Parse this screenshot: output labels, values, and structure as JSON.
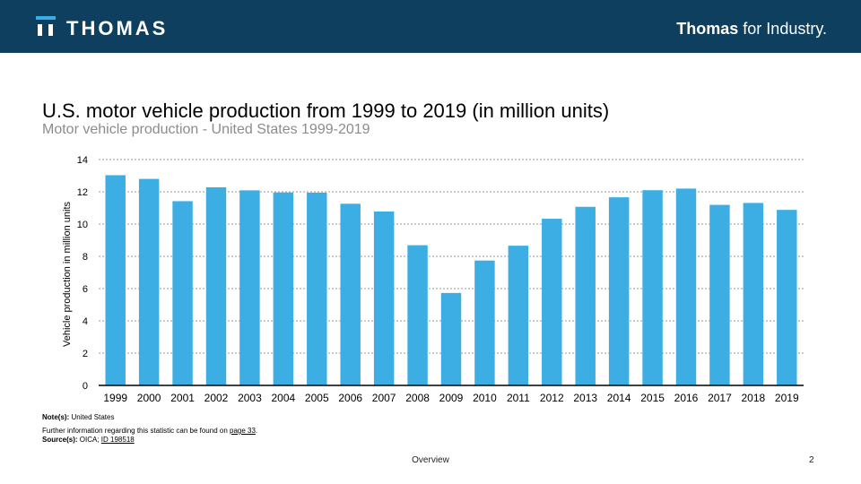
{
  "header": {
    "logo_text": "THOMAS",
    "tagline_bold": "Thomas",
    "tagline_rest": " for Industry."
  },
  "slide": {
    "title": "U.S. motor vehicle production from 1999 to 2019 (in million units)",
    "subtitle": "Motor vehicle production - United States 1999-2019"
  },
  "notes": {
    "note_label": "Note(s):",
    "note_text": " United States",
    "further_prefix": "Further information regarding  this statistic can be found on ",
    "further_link": "page  33",
    "further_suffix": ".",
    "source_label": "Source(s):",
    "source_text": " OICA; ",
    "source_link": "ID 198518"
  },
  "footer": {
    "section": "Overview",
    "page": "2"
  },
  "colors": {
    "bar": "#3daee3",
    "header": "#0e3f5e"
  },
  "chart_data": {
    "type": "bar",
    "title": "U.S. motor vehicle production from 1999 to 2019 (in million units)",
    "xlabel": "",
    "ylabel": "Vehicle production in million units",
    "ylim": [
      0,
      14
    ],
    "yticks": [
      0,
      2,
      4,
      6,
      8,
      10,
      12,
      14
    ],
    "grid": true,
    "categories": [
      "1999",
      "2000",
      "2001",
      "2002",
      "2003",
      "2004",
      "2005",
      "2006",
      "2007",
      "2008",
      "2009",
      "2010",
      "2011",
      "2012",
      "2013",
      "2014",
      "2015",
      "2016",
      "2017",
      "2018",
      "2019"
    ],
    "values": [
      13.03,
      12.8,
      11.42,
      12.28,
      12.09,
      11.96,
      11.95,
      11.26,
      10.78,
      8.69,
      5.73,
      7.74,
      8.66,
      10.33,
      11.07,
      11.66,
      12.1,
      12.2,
      11.19,
      11.31,
      10.88
    ]
  }
}
